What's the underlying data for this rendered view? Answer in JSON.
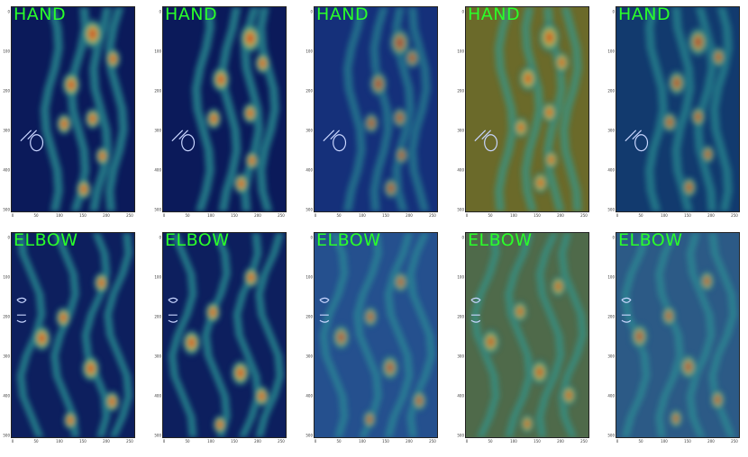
{
  "panels": [
    {
      "title": "HAND",
      "kind": "hand",
      "tint": "#0b1a5a",
      "heat": 0.9
    },
    {
      "title": "HAND",
      "kind": "hand",
      "tint": "#0b1a5a",
      "heat": 0.9
    },
    {
      "title": "HAND",
      "kind": "hand",
      "tint": "#15307a",
      "heat": 0.7
    },
    {
      "title": "HAND",
      "kind": "hand",
      "tint": "#6b6a2a",
      "heat": 0.8
    },
    {
      "title": "HAND",
      "kind": "hand",
      "tint": "#123a6e",
      "heat": 0.75
    },
    {
      "title": "ELBOW",
      "kind": "elbow",
      "tint": "#0d1f5e",
      "heat": 0.9
    },
    {
      "title": "ELBOW",
      "kind": "elbow",
      "tint": "#0d1f5e",
      "heat": 0.9
    },
    {
      "title": "ELBOW",
      "kind": "elbow",
      "tint": "#25508e",
      "heat": 0.7
    },
    {
      "title": "ELBOW",
      "kind": "elbow",
      "tint": "#4f6a4a",
      "heat": 0.75
    },
    {
      "title": "ELBOW",
      "kind": "elbow",
      "tint": "#2c5a86",
      "heat": 0.7
    }
  ],
  "axes": {
    "x_ticks": [
      "0",
      "50",
      "100",
      "150",
      "200",
      "250"
    ],
    "y_ticks_hand": [
      "0",
      "100",
      "200",
      "300",
      "400",
      "500"
    ],
    "y_ticks_elbow": [
      "0",
      "100",
      "200",
      "300",
      "400",
      "500"
    ]
  }
}
